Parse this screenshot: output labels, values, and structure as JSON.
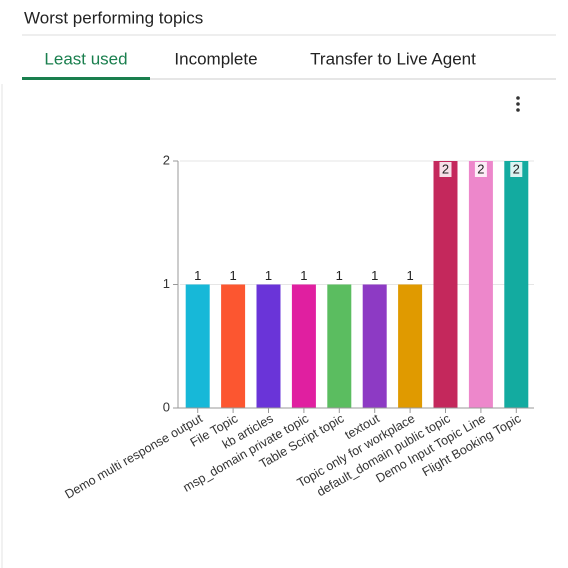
{
  "header": {
    "title": "Worst performing topics"
  },
  "tabs": [
    "Least used",
    "Incomplete",
    "Transfer to Live Agent"
  ],
  "chart_data": {
    "type": "bar",
    "categories": [
      "Demo multi response output",
      "File Topic",
      "kb articles",
      "msp_domain private topic",
      "Table Script topic",
      "textout",
      "Topic only for workplace",
      "default_domain public topic",
      "Demo Input Topic Line",
      "Flight Booking Topic"
    ],
    "values": [
      1,
      1,
      1,
      1,
      1,
      1,
      1,
      2,
      2,
      2
    ],
    "colors": [
      "#17b8d8",
      "#fc5630",
      "#6a34d8",
      "#e01fa0",
      "#5bbd60",
      "#8d3ac4",
      "#e09a00",
      "#c4285c",
      "#ed87cb",
      "#13aba0"
    ],
    "ylim": [
      0,
      2
    ],
    "yticks": [
      0,
      1,
      2
    ],
    "grid": true
  }
}
